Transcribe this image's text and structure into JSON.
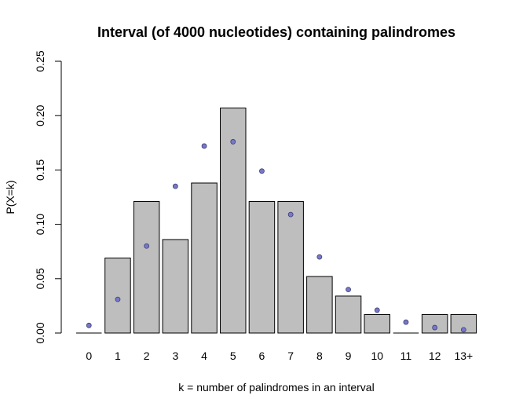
{
  "chart_data": {
    "type": "bar",
    "title": "Interval (of 4000 nucleotides) containing palindromes",
    "xlabel": "k = number of palindromes in an interval",
    "ylabel": "P(X=k)",
    "categories": [
      "0",
      "1",
      "2",
      "3",
      "4",
      "5",
      "6",
      "7",
      "8",
      "9",
      "10",
      "11",
      "12",
      "13+"
    ],
    "series": [
      {
        "type": "bar",
        "values": [
          0.0,
          0.069,
          0.121,
          0.086,
          0.138,
          0.207,
          0.121,
          0.121,
          0.052,
          0.034,
          0.017,
          0.0,
          0.017,
          0.017
        ]
      },
      {
        "type": "scatter",
        "values": [
          0.007,
          0.031,
          0.08,
          0.135,
          0.172,
          0.176,
          0.149,
          0.109,
          0.07,
          0.04,
          0.021,
          0.01,
          0.005,
          0.003
        ]
      }
    ],
    "ylim": [
      0,
      0.25
    ],
    "yticks": [
      "0.00",
      "0.05",
      "0.10",
      "0.15",
      "0.20",
      "0.25"
    ],
    "grid": false,
    "colors": {
      "bar_fill": "#bebebe",
      "bar_stroke": "#000000",
      "point_fill": "#7878c8",
      "point_stroke": "#3c3c78"
    }
  }
}
